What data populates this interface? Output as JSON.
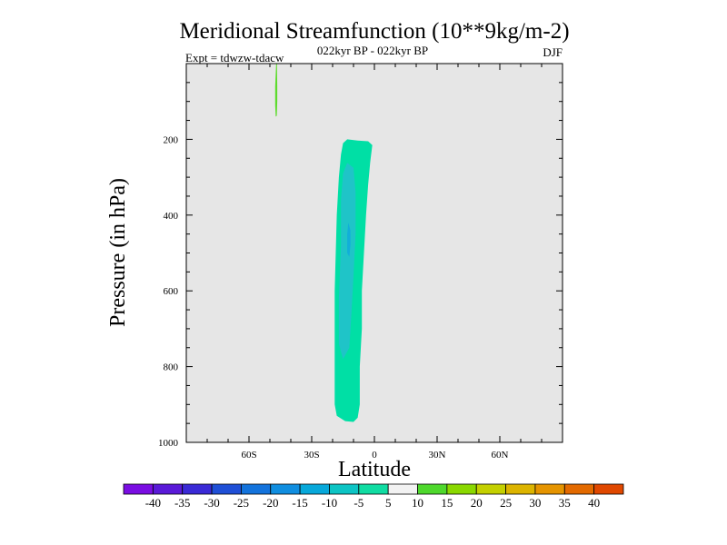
{
  "chart_data": {
    "type": "heatmap",
    "title": "Meridional Streamfunction (10**9kg/m-2)",
    "subtitle_center": "022kyr BP - 022kyr BP",
    "subtitle_left": "Expt = tdwzw-tdacw",
    "subtitle_right": "DJF",
    "xlabel": "Latitude",
    "ylabel": "Pressure (in hPa)",
    "xlim": [
      -90,
      90
    ],
    "ylim": [
      1000,
      0
    ],
    "y_reversed": true,
    "x_ticks": [
      {
        "value": -60,
        "label": "60S"
      },
      {
        "value": -30,
        "label": "30S"
      },
      {
        "value": 0,
        "label": "0"
      },
      {
        "value": 30,
        "label": "30N"
      },
      {
        "value": 60,
        "label": "60N"
      }
    ],
    "y_ticks": [
      {
        "value": 200,
        "label": "200"
      },
      {
        "value": 400,
        "label": "400"
      },
      {
        "value": 600,
        "label": "600"
      },
      {
        "value": 800,
        "label": "800"
      },
      {
        "value": 1000,
        "label": "1000"
      }
    ],
    "background_color": "#e6e6e6",
    "contour_regions": [
      {
        "name": "cell-outer",
        "level_range": [
          -10,
          -5
        ],
        "color": "#00dfa5",
        "points": [
          [
            -13,
            200
          ],
          [
            -8,
            203
          ],
          [
            -3,
            205
          ],
          [
            -1,
            215
          ],
          [
            -2,
            260
          ],
          [
            -3,
            320
          ],
          [
            -4,
            400
          ],
          [
            -5,
            500
          ],
          [
            -6,
            600
          ],
          [
            -6,
            700
          ],
          [
            -7,
            800
          ],
          [
            -7,
            900
          ],
          [
            -8,
            935
          ],
          [
            -10,
            946
          ],
          [
            -14,
            944
          ],
          [
            -18,
            930
          ],
          [
            -19,
            900
          ],
          [
            -19,
            800
          ],
          [
            -19,
            600
          ],
          [
            -18,
            400
          ],
          [
            -17,
            300
          ],
          [
            -16,
            240
          ],
          [
            -15,
            210
          ]
        ]
      },
      {
        "name": "cell-inner",
        "level_range": [
          -15,
          -10
        ],
        "color": "#1fc4c8",
        "points": [
          [
            -13,
            262
          ],
          [
            -10,
            275
          ],
          [
            -9,
            340
          ],
          [
            -9,
            450
          ],
          [
            -10,
            560
          ],
          [
            -11,
            660
          ],
          [
            -12,
            750
          ],
          [
            -15,
            780
          ],
          [
            -17,
            740
          ],
          [
            -17,
            620
          ],
          [
            -16,
            480
          ],
          [
            -16,
            360
          ],
          [
            -15,
            290
          ]
        ]
      },
      {
        "name": "cell-core",
        "level_range": [
          -20,
          -15
        ],
        "color": "#12aed9",
        "points": [
          [
            -12.5,
            420
          ],
          [
            -11.5,
            440
          ],
          [
            -11.5,
            480
          ],
          [
            -12,
            510
          ],
          [
            -13,
            500
          ],
          [
            -13,
            450
          ]
        ]
      },
      {
        "name": "upper-sliver",
        "level_range": [
          5,
          10
        ],
        "color": "#5ddb2c",
        "points": [
          [
            -47,
            0
          ],
          [
            -46.6,
            0
          ],
          [
            -46.5,
            60
          ],
          [
            -46.5,
            100
          ],
          [
            -46.7,
            138
          ],
          [
            -47.2,
            140
          ],
          [
            -47.5,
            110
          ],
          [
            -47.5,
            60
          ]
        ]
      }
    ],
    "colorbar": {
      "levels": [
        -40,
        -35,
        -30,
        -25,
        -20,
        -15,
        -10,
        -5,
        5,
        10,
        15,
        20,
        25,
        30,
        35,
        40
      ],
      "colors": [
        "#7a0de2",
        "#5a1ad8",
        "#3a2ad6",
        "#1f4fd6",
        "#1373dc",
        "#108ee0",
        "#07a8da",
        "#0cc4c4",
        "#10dca2",
        "#f2f2f2",
        "#4ed82c",
        "#8ad800",
        "#c4d000",
        "#dcb400",
        "#e59400",
        "#e36a00",
        "#e04800"
      ]
    }
  }
}
